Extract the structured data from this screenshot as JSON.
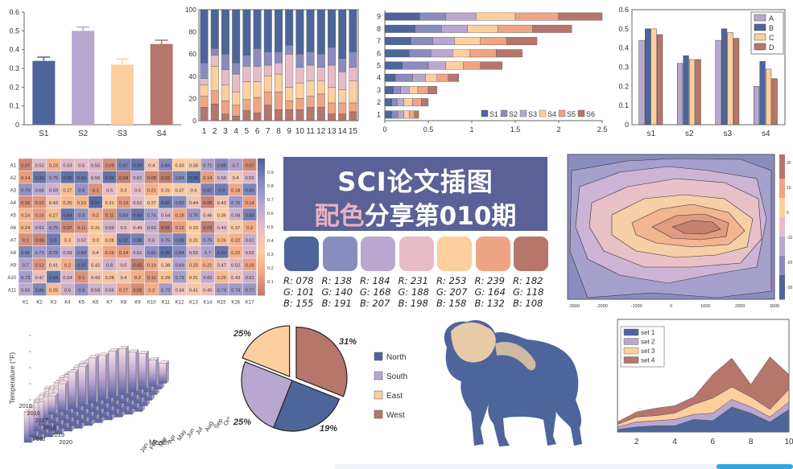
{
  "header": {
    "line1": "SCI论文插图",
    "line2_highlight": "配色",
    "line2_rest": "分享第010期"
  },
  "palette": [
    {
      "hex": "#4e659b",
      "r": "R: 078",
      "g": "G: 101",
      "b": "B: 155"
    },
    {
      "hex": "#8a8cbf",
      "r": "R: 138",
      "g": "G: 140",
      "b": "B: 191"
    },
    {
      "hex": "#b8a8cf",
      "r": "R: 184",
      "g": "G: 168",
      "b": "B: 207"
    },
    {
      "hex": "#e7bcc6",
      "r": "R: 231",
      "g": "G: 188",
      "b": "B: 198"
    },
    {
      "hex": "#fdcf9e",
      "r": "R: 253",
      "g": "G: 207",
      "b": "B: 158"
    },
    {
      "hex": "#efa484",
      "r": "R: 239",
      "g": "G: 164",
      "b": "B: 132"
    },
    {
      "hex": "#b6766c",
      "r": "R: 182",
      "g": "G: 118",
      "b": "B: 108"
    }
  ],
  "chart_data": [
    {
      "type": "bar",
      "categories": [
        "S1",
        "S2",
        "S3",
        "S4"
      ],
      "values": [
        0.34,
        0.5,
        0.32,
        0.43
      ],
      "errors": [
        0.02,
        0.02,
        0.03,
        0.02
      ],
      "ylim": [
        0,
        0.6
      ],
      "yticks": [
        "0",
        "0.1",
        "0.2",
        "0.3",
        "0.4",
        "0.5",
        "0.6"
      ]
    },
    {
      "type": "bar",
      "stacked": true,
      "categories": [
        "1",
        "2",
        "3",
        "4",
        "5",
        "6",
        "7",
        "8",
        "9",
        "10",
        "11",
        "12",
        "13",
        "14",
        "15"
      ],
      "series": [
        {
          "values": [
            12,
            15,
            6,
            4,
            9,
            7,
            14,
            10,
            10,
            10,
            12,
            12,
            6,
            6,
            8
          ]
        },
        {
          "values": [
            10,
            12,
            12,
            10,
            10,
            14,
            12,
            16,
            8,
            10,
            10,
            12,
            10,
            10,
            8
          ]
        },
        {
          "values": [
            10,
            22,
            14,
            12,
            16,
            14,
            14,
            16,
            12,
            14,
            14,
            12,
            14,
            12,
            20
          ]
        },
        {
          "values": [
            6,
            10,
            14,
            16,
            14,
            14,
            10,
            10,
            30,
            14,
            14,
            12,
            20,
            16,
            12
          ]
        },
        {
          "values": [
            14,
            6,
            14,
            10,
            10,
            16,
            12,
            10,
            8,
            12,
            12,
            12,
            16,
            12,
            14
          ]
        },
        {
          "values": [
            48,
            35,
            40,
            48,
            41,
            35,
            38,
            38,
            32,
            40,
            38,
            40,
            34,
            44,
            38
          ]
        }
      ],
      "ylim": [
        0,
        100
      ],
      "yticks": [
        "0",
        "20",
        "40",
        "60",
        "80",
        "100"
      ]
    },
    {
      "type": "bar",
      "orientation": "horizontal",
      "stacked": true,
      "categories": [
        "1",
        "2",
        "3",
        "4",
        "5",
        "6",
        "7",
        "8",
        "9"
      ],
      "series": [
        {
          "name": "S1",
          "values": [
            0.08,
            0.08,
            0.1,
            0.12,
            0.2,
            0.28,
            0.3,
            0.35,
            0.4
          ]
        },
        {
          "name": "S2",
          "values": [
            0.07,
            0.06,
            0.08,
            0.2,
            0.3,
            0.25,
            0.25,
            0.3,
            0.3
          ]
        },
        {
          "name": "S3",
          "values": [
            0.07,
            0.08,
            0.1,
            0.15,
            0.2,
            0.25,
            0.25,
            0.3,
            0.35
          ]
        },
        {
          "name": "S4",
          "values": [
            0.06,
            0.1,
            0.1,
            0.13,
            0.2,
            0.2,
            0.3,
            0.35,
            0.45
          ]
        },
        {
          "name": "S5",
          "values": [
            0.06,
            0.1,
            0.12,
            0.13,
            0.2,
            0.3,
            0.3,
            0.4,
            0.5
          ]
        },
        {
          "name": "S6",
          "values": [
            0.05,
            0.08,
            0.1,
            0.12,
            0.25,
            0.3,
            0.35,
            0.45,
            0.5
          ]
        }
      ],
      "xlim": [
        0,
        2.5
      ],
      "xticks": [
        "0",
        "0.5",
        "1",
        "1.5",
        "2",
        "2.5"
      ]
    },
    {
      "type": "bar",
      "grouped": true,
      "categories": [
        "s1",
        "s2",
        "s3",
        "s4"
      ],
      "series": [
        {
          "name": "A",
          "values": [
            0.44,
            0.32,
            0.44,
            0.2
          ]
        },
        {
          "name": "B",
          "values": [
            0.5,
            0.36,
            0.5,
            0.33
          ]
        },
        {
          "name": "C",
          "values": [
            0.5,
            0.34,
            0.48,
            0.29
          ]
        },
        {
          "name": "D",
          "values": [
            0.47,
            0.34,
            0.45,
            0.24
          ]
        }
      ],
      "ylim": [
        0,
        0.6
      ],
      "yticks": [
        "0",
        "0.1",
        "0.2",
        "0.3",
        "0.4",
        "0.5",
        "0.6"
      ]
    },
    {
      "type": "heatmap",
      "xlabels": [
        "K1",
        "K2",
        "K3",
        "K4",
        "K5",
        "K6",
        "K7",
        "K8",
        "K9",
        "K10",
        "K11",
        "K12",
        "K13",
        "K14",
        "K15",
        "K16",
        "K17"
      ],
      "ylabels": [
        "A1",
        "A2",
        "A3",
        "A4",
        "A5",
        "A6",
        "A7",
        "A8",
        "A9",
        "A10",
        "A11"
      ],
      "values": [
        [
          0.07,
          0.52,
          0.23,
          0.53,
          0.5,
          0.55,
          0.09,
          0.87,
          0.93,
          0.4,
          0.84,
          0.33,
          0.38,
          0.71,
          0.85,
          0.7,
          0.07
        ],
        [
          0.14,
          0.93,
          0.75,
          0.95,
          0.92,
          0.56,
          0.94,
          0.04,
          0.61,
          0.08,
          0.02,
          0.84,
          0.98,
          0.14,
          0.56,
          0.4,
          0.55
        ],
        [
          0.79,
          0.66,
          0.59,
          0.27,
          0.8,
          0.1,
          0.5,
          0.3,
          0.5,
          0.21,
          0.31,
          0.37,
          0.4,
          0.87,
          0.9,
          0.18,
          0.86
        ],
        [
          0.09,
          0.12,
          0.43,
          0.25,
          0.23,
          0.97,
          0.31,
          0.13,
          0.52,
          0.37,
          0.92,
          0.83,
          0.44,
          0.05,
          0.42,
          0.76,
          0.14
        ],
        [
          0.24,
          0.15,
          0.27,
          0.93,
          0.8,
          0.2,
          0.11,
          0.83,
          0.93,
          0.74,
          0.54,
          0.18,
          0.76,
          0.46,
          0.35,
          0.58,
          0.88
        ],
        [
          0.24,
          0.62,
          0.75,
          0.07,
          0.11,
          0.31,
          0.59,
          0.5,
          0.49,
          0.62,
          0.01,
          0.15,
          0.33,
          0.03,
          0.49,
          0.37,
          0.2
        ],
        [
          0.1,
          0.06,
          0.9,
          0.3,
          0.52,
          0.3,
          0.28,
          0.92,
          0.88,
          0.6,
          0.75,
          0.88,
          0.31,
          0.75,
          0.26,
          0.22,
          0.61
        ],
        [
          0.86,
          0.73,
          0.79,
          0.59,
          0.84,
          0.4,
          0.16,
          0.14,
          0.61,
          0.82,
          0.95,
          0.84,
          0.55,
          0.7,
          0.93,
          0.22,
          0.55
        ],
        [
          0.7,
          0.12,
          0.41,
          0.2,
          0.92,
          0.42,
          0.6,
          0.5,
          0.03,
          0.19,
          0.38,
          0.69,
          0.25,
          0.21,
          0.47,
          0.52,
          0.16
        ],
        [
          0.73,
          0.47,
          0.94,
          0.54,
          0.1,
          0.43,
          0.28,
          0.4,
          0.2,
          0.12,
          0.29,
          0.73,
          0.31,
          0.63,
          0.25,
          0.43,
          0.61
        ],
        [
          0.65,
          0.86,
          0.26,
          0.6,
          0.8,
          0.59,
          0.56,
          0.17,
          0.08,
          0.2,
          0.73,
          0.44,
          0.41,
          0.45,
          0.74,
          0.74,
          0.77
        ]
      ],
      "colorbar_ticks": [
        "0.9",
        "0.8",
        "0.7",
        "0.6",
        "0.5",
        "0.4",
        "0.3",
        "0.2",
        "0.1"
      ]
    },
    {
      "type": "contour",
      "xticks": [
        "-3000",
        "-2000",
        "-1000",
        "0",
        "1000",
        "2000",
        "3000"
      ],
      "colorbar_ticks": [
        "20",
        "10",
        "0",
        "-10",
        "-20",
        "-30"
      ]
    },
    {
      "type": "bar3d",
      "xlabel": "Month",
      "ylabel": "Year",
      "zlabel": "Temperature (°F)",
      "months": [
        "Jan",
        "Feb",
        "Mar",
        "Apr",
        "May",
        "Jun",
        "Jul",
        "Aug",
        "Sep",
        "Oct",
        "Nov",
        "Dec"
      ],
      "years": [
        "2015",
        "2016",
        "2017",
        "2018",
        "2019",
        "2020"
      ]
    },
    {
      "type": "pie",
      "labels": [
        "North",
        "South",
        "East",
        "West"
      ],
      "values": [
        25,
        25,
        19,
        31
      ],
      "value_labels": [
        "25%",
        "25%",
        "19%",
        "31%"
      ]
    },
    {
      "type": "area",
      "stacked": true,
      "x": [
        1,
        2,
        3,
        4,
        5,
        6,
        7,
        8,
        9,
        10
      ],
      "series": [
        {
          "name": "set 1",
          "values": [
            2,
            4,
            5,
            5,
            10,
            9,
            20,
            15,
            8,
            18
          ]
        },
        {
          "name": "set 2",
          "values": [
            2,
            4,
            4,
            5,
            4,
            6,
            6,
            5,
            4,
            6
          ]
        },
        {
          "name": "set 3",
          "values": [
            2,
            4,
            4,
            5,
            8,
            12,
            10,
            8,
            6,
            10
          ]
        },
        {
          "name": "set 4",
          "values": [
            2,
            4,
            6,
            6,
            6,
            19,
            23,
            10,
            42,
            12
          ]
        }
      ],
      "xticks": [
        "2",
        "4",
        "6",
        "8",
        "10"
      ]
    }
  ]
}
